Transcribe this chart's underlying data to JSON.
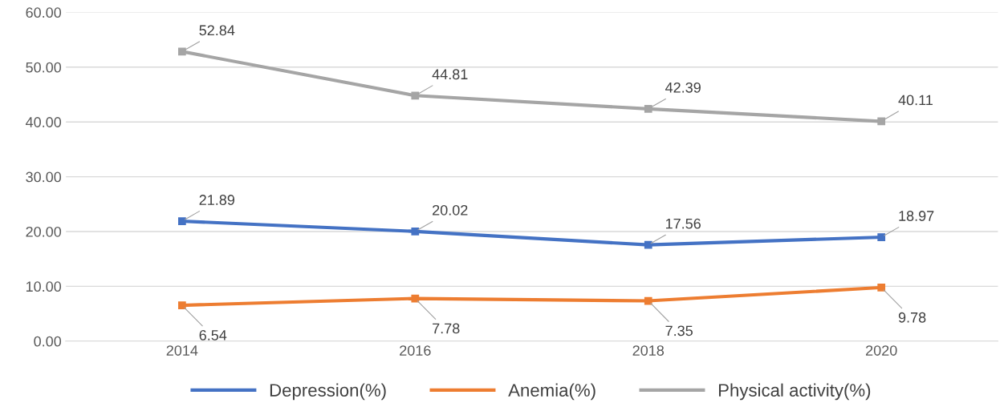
{
  "chart_data": {
    "type": "line",
    "categories": [
      "2014",
      "2016",
      "2018",
      "2020"
    ],
    "series": [
      {
        "name": "Depression(%)",
        "color": "#4472c4",
        "values": [
          21.89,
          20.02,
          17.56,
          18.97
        ]
      },
      {
        "name": "Anemia(%)",
        "color": "#ed7d31",
        "values": [
          6.54,
          7.78,
          7.35,
          9.78
        ]
      },
      {
        "name": "Physical activity(%)",
        "color": "#a5a5a5",
        "values": [
          52.84,
          44.81,
          42.39,
          40.11
        ]
      }
    ],
    "ylim": [
      0,
      60
    ],
    "yticks": [
      {
        "value": 0,
        "label": "0.00"
      },
      {
        "value": 10,
        "label": "10.00"
      },
      {
        "value": 20,
        "label": "20.00"
      },
      {
        "value": 30,
        "label": "30.00"
      },
      {
        "value": 40,
        "label": "40.00"
      },
      {
        "value": 50,
        "label": "50.00"
      },
      {
        "value": 60,
        "label": "60.00"
      }
    ],
    "grid": "y",
    "legend": "bottom",
    "marker": "square",
    "line_style": "solid",
    "data_labels": true
  }
}
